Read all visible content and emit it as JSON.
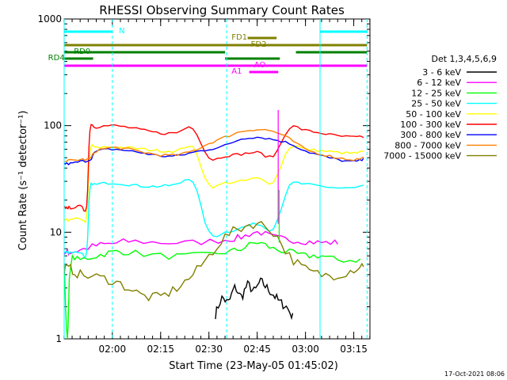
{
  "chart_data": {
    "type": "line",
    "title": "RHESSI Observing Summary Count Rates",
    "xlabel": "Start Time (23-May-05 01:45:02)",
    "ylabel": "Count Rate (s⁻¹ detector⁻¹)",
    "yscale": "log",
    "ylim": [
      1,
      1000
    ],
    "xlim_minutes": [
      0,
      95
    ],
    "x_ticks": [
      "02:00",
      "02:15",
      "02:30",
      "02:45",
      "03:00",
      "03:15"
    ],
    "x_tick_minutes": [
      14.97,
      29.97,
      44.97,
      59.97,
      74.97,
      89.97
    ],
    "y_ticks": [
      "1",
      "10",
      "100",
      "1000"
    ],
    "y_tick_values": [
      1,
      10,
      100,
      1000
    ],
    "legend_title": "Det 1,3,4,5,6,9",
    "legend_position": "right",
    "series": [
      {
        "name": "3 - 6 keV",
        "color": "#000000",
        "x": [
          47,
          49,
          51,
          53,
          55,
          57,
          59,
          61,
          63,
          65,
          67,
          69,
          71
        ],
        "y": [
          1.7,
          2.4,
          2.2,
          3.0,
          2.5,
          3.2,
          2.8,
          3.4,
          3.0,
          2.6,
          2.2,
          2.0,
          1.6
        ]
      },
      {
        "name": "6 - 12 keV",
        "color": "#ff00ff",
        "x": [
          0,
          1,
          2,
          5,
          10,
          15,
          20,
          30,
          40,
          50,
          55,
          60,
          65,
          70,
          75,
          80,
          85
        ],
        "y": [
          6.5,
          6.5,
          6.5,
          6.8,
          7.5,
          7.8,
          8.2,
          8.0,
          8.0,
          8.5,
          9.0,
          10.0,
          9.0,
          8.5,
          8.2,
          8.0,
          8.0
        ]
      },
      {
        "name": "12 - 25 keV",
        "color": "#00ff00",
        "x": [
          0,
          1,
          2,
          5,
          10,
          15,
          20,
          30,
          40,
          50,
          55,
          60,
          65,
          70,
          75,
          80,
          85,
          92
        ],
        "y": [
          5.0,
          1.0,
          5.0,
          5.5,
          6.0,
          6.5,
          6.5,
          6.0,
          6.0,
          6.5,
          7.0,
          8.0,
          7.0,
          6.5,
          6.0,
          6.0,
          5.5,
          5.5
        ]
      },
      {
        "name": "25 - 50 keV",
        "color": "#00ffff",
        "x": [
          0,
          1,
          2,
          5,
          7,
          8,
          10,
          15,
          20,
          25,
          30,
          35,
          40,
          45,
          50,
          55,
          60,
          65,
          70,
          75,
          80,
          85,
          90,
          93
        ],
        "y": [
          6.5,
          6.5,
          6.5,
          6.5,
          6.5,
          25,
          28,
          29,
          28,
          27,
          27,
          28,
          30,
          10,
          10,
          11,
          12,
          11,
          27,
          28,
          27,
          26,
          26,
          27
        ]
      },
      {
        "name": "50 - 100 keV",
        "color": "#ffff00",
        "x": [
          0,
          1,
          2,
          5,
          7,
          8,
          10,
          15,
          20,
          25,
          30,
          35,
          40,
          45,
          50,
          55,
          60,
          65,
          70,
          75,
          80,
          85,
          90,
          93
        ],
        "y": [
          13,
          13,
          13,
          13.5,
          14,
          57,
          62,
          63,
          62,
          60,
          58,
          58,
          62,
          28,
          29,
          30,
          32,
          30,
          62,
          60,
          58,
          56,
          55,
          57
        ]
      },
      {
        "name": "100 - 300 keV",
        "color": "#ff0000",
        "x": [
          0,
          1,
          2,
          5,
          7,
          8,
          10,
          15,
          20,
          25,
          30,
          35,
          40,
          45,
          50,
          55,
          60,
          65,
          70,
          75,
          80,
          85,
          90,
          93
        ],
        "y": [
          17,
          17,
          17,
          17.5,
          18,
          90,
          97,
          100,
          96,
          90,
          85,
          86,
          95,
          50,
          52,
          54,
          56,
          52,
          95,
          90,
          85,
          80,
          78,
          78
        ]
      },
      {
        "name": "300 - 800 keV",
        "color": "#0000ff",
        "x": [
          0,
          2,
          5,
          8,
          10,
          15,
          20,
          25,
          30,
          35,
          40,
          45,
          50,
          55,
          60,
          65,
          70,
          75,
          80,
          85,
          90,
          93
        ],
        "y": [
          44,
          44,
          46,
          48,
          57,
          60,
          58,
          55,
          52,
          52,
          56,
          60,
          65,
          75,
          78,
          74,
          68,
          58,
          52,
          48,
          46,
          48
        ]
      },
      {
        "name": "800 - 7000 keV",
        "color": "#ff8000",
        "x": [
          0,
          2,
          5,
          8,
          10,
          15,
          20,
          25,
          30,
          35,
          40,
          45,
          50,
          55,
          60,
          65,
          70,
          75,
          80,
          85,
          90,
          93
        ],
        "y": [
          47,
          47,
          48,
          49,
          58,
          62,
          60,
          56,
          53,
          53,
          58,
          68,
          78,
          88,
          92,
          88,
          75,
          60,
          54,
          50,
          48,
          50
        ]
      },
      {
        "name": "7000 - 15000 keV",
        "color": "#808000",
        "x": [
          0,
          2,
          5,
          10,
          15,
          20,
          25,
          30,
          35,
          40,
          45,
          50,
          55,
          60,
          65,
          70,
          75,
          80,
          85,
          90,
          93
        ],
        "y": [
          4.5,
          4.5,
          4.0,
          3.8,
          3.5,
          3.0,
          2.5,
          2.5,
          3.0,
          4.0,
          6.0,
          9.0,
          11.0,
          12.0,
          10.0,
          6.0,
          4.5,
          4.0,
          4.0,
          4.5,
          5.0
        ]
      }
    ],
    "spikes": [
      {
        "series": 1,
        "x": 66.5,
        "y": 140,
        "base": 12
      },
      {
        "series": 2,
        "x": 66.8,
        "y": 25,
        "base": 8
      }
    ],
    "vlines_solid_minutes": [
      0,
      79.5
    ],
    "vlines_dashed_minutes": [
      14.97,
      50.5,
      94.1
    ],
    "state_bars": [
      {
        "label": "N",
        "color": "#00ffff",
        "y": 1,
        "segments": [
          [
            0,
            14.97
          ],
          [
            79.5,
            94.1
          ]
        ],
        "label_at": 17
      },
      {
        "label": "FD1",
        "color": "#808000",
        "y": 2,
        "segments": [
          [
            57,
            66
          ]
        ],
        "label_at": 52
      },
      {
        "label": "FD2",
        "color": "#808000",
        "y": 3,
        "segments": [
          [
            0,
            94.1
          ]
        ],
        "label_at": 58
      },
      {
        "label": "RD0",
        "color": "#008000",
        "y": 4,
        "segments": [
          [
            0,
            50
          ],
          [
            72,
            94.1
          ]
        ],
        "label_at": 3
      },
      {
        "label": "RD4",
        "color": "#008000",
        "y": 5,
        "segments": [
          [
            0,
            9
          ],
          [
            50,
            67
          ]
        ],
        "label_at": -5
      },
      {
        "label": "AO",
        "color": "#ff00ff",
        "y": 6,
        "segments": [
          [
            0,
            94.1
          ]
        ],
        "label_at": 59
      },
      {
        "label": "A1",
        "color": "#ff00ff",
        "y": 7,
        "segments": [
          [
            57.5,
            66.5
          ]
        ],
        "label_at": 52
      }
    ],
    "footer_date": "17-Oct-2021 08:06"
  }
}
